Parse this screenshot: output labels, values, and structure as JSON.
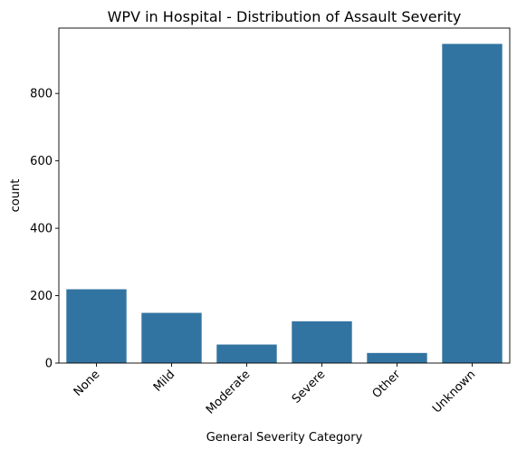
{
  "chart_data": {
    "type": "bar",
    "title": "WPV in Hospital - Distribution of Assault Severity",
    "xlabel": "General Severity Category",
    "ylabel": "count",
    "categories": [
      "None",
      "Mild",
      "Moderate",
      "Severe",
      "Other",
      "Unknown"
    ],
    "values": [
      219,
      149,
      55,
      124,
      30,
      947
    ],
    "ylim": [
      0,
      994
    ],
    "yticks": [
      0,
      200,
      400,
      600,
      800
    ],
    "bar_color": "#3274a1",
    "grid": false,
    "x_tick_rotation": 45
  }
}
